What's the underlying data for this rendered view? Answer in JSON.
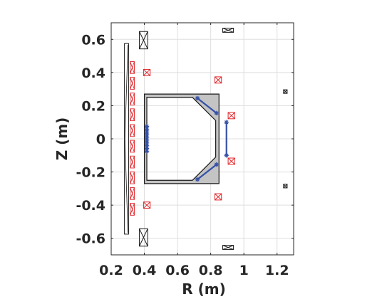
{
  "chart_data": {
    "type": "scatter",
    "xlabel": "R (m)",
    "ylabel": "Z (m)",
    "xlim": [
      0.2,
      1.3
    ],
    "ylim": [
      -0.7,
      0.7
    ],
    "aspect": "equal",
    "grid": true,
    "x_ticks": [
      {
        "value": 0.2,
        "label": "0.2"
      },
      {
        "value": 0.4,
        "label": "0.4"
      },
      {
        "value": 0.6,
        "label": "0.6"
      },
      {
        "value": 0.8,
        "label": "0.8"
      },
      {
        "value": 1.0,
        "label": "1"
      },
      {
        "value": 1.2,
        "label": "1.2"
      }
    ],
    "y_ticks": [
      {
        "value": 0.6,
        "label": "0.6"
      },
      {
        "value": 0.4,
        "label": "0.4"
      },
      {
        "value": 0.2,
        "label": "0.2"
      },
      {
        "value": 0.0,
        "label": "0"
      },
      {
        "value": -0.2,
        "label": "-0.2"
      },
      {
        "value": -0.4,
        "label": "-0.4"
      },
      {
        "value": -0.6,
        "label": "-0.6"
      }
    ],
    "colors": {
      "axis": "#262626",
      "grid": "#dfdfdf",
      "coil_red": "#e0262a",
      "coil_black": "#1a1a1a",
      "probe_blue": "#3450a8",
      "vessel_fill": "#c4c4c4"
    },
    "central_column": {
      "r_min": 0.28,
      "r_max": 0.305,
      "z_min": -0.575,
      "z_max": 0.575
    },
    "vacuum_vessel": {
      "outer": [
        [
          0.4,
          0.27
        ],
        [
          0.85,
          0.27
        ],
        [
          0.85,
          -0.27
        ],
        [
          0.4,
          -0.27
        ]
      ],
      "inner": [
        [
          0.415,
          0.25
        ],
        [
          0.69,
          0.25
        ],
        [
          0.83,
          0.11
        ],
        [
          0.83,
          -0.11
        ],
        [
          0.69,
          -0.25
        ],
        [
          0.415,
          -0.25
        ]
      ]
    },
    "pf_coils_black": [
      {
        "r": 0.395,
        "z": 0.595,
        "w": 0.05,
        "h": 0.105
      },
      {
        "r": 0.395,
        "z": -0.595,
        "w": 0.05,
        "h": 0.105
      },
      {
        "r": 0.905,
        "z": 0.655,
        "w": 0.065,
        "h": 0.025
      },
      {
        "r": 0.905,
        "z": -0.655,
        "w": 0.065,
        "h": 0.025
      },
      {
        "r": 1.25,
        "z": 0.285,
        "w": 0.022,
        "h": 0.022
      },
      {
        "r": 1.25,
        "z": -0.285,
        "w": 0.022,
        "h": 0.022
      }
    ],
    "pf_coils_red": [
      {
        "r": 0.415,
        "z": 0.4,
        "w": 0.04,
        "h": 0.038
      },
      {
        "r": 0.415,
        "z": -0.4,
        "w": 0.04,
        "h": 0.038
      },
      {
        "r": 0.845,
        "z": 0.355,
        "w": 0.04,
        "h": 0.038
      },
      {
        "r": 0.845,
        "z": -0.35,
        "w": 0.04,
        "h": 0.038
      },
      {
        "r": 0.925,
        "z": 0.14,
        "w": 0.04,
        "h": 0.038
      },
      {
        "r": 0.925,
        "z": -0.135,
        "w": 0.04,
        "h": 0.038
      }
    ],
    "solenoid_coils_red": {
      "r": 0.327,
      "w": 0.025,
      "h": 0.072,
      "z": [
        0.43,
        0.335,
        0.24,
        0.145,
        0.05,
        -0.045,
        -0.14,
        -0.235,
        -0.33,
        -0.425
      ]
    },
    "probes": [
      {
        "r1": 0.72,
        "z1": 0.245,
        "r2": 0.835,
        "z2": 0.155
      },
      {
        "r1": 0.72,
        "z1": -0.245,
        "r2": 0.835,
        "z2": -0.155
      },
      {
        "r1": 0.895,
        "z1": 0.1,
        "r2": 0.895,
        "z2": -0.1
      },
      {
        "r1": 0.415,
        "z1": 0.075,
        "r2": 0.415,
        "z2": -0.075
      }
    ]
  }
}
